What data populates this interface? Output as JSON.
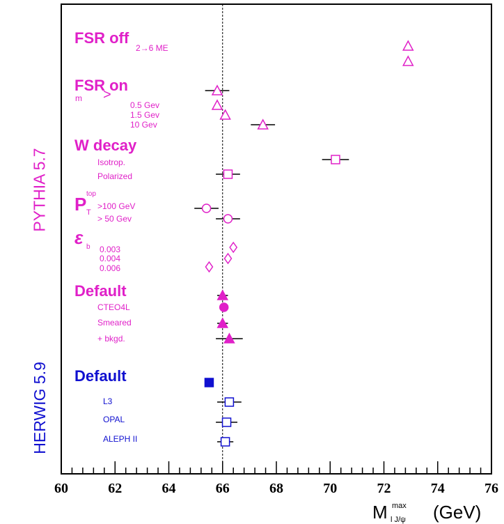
{
  "chart_data": {
    "type": "scatter",
    "xlabel": "M_{J/ψ}^{max}  (GeV)",
    "x_axis_label_main": "M",
    "x_axis_label_sup": "max",
    "x_axis_label_sub": "l J/ψ",
    "x_axis_unit": "(GeV)",
    "xlim": [
      60,
      76
    ],
    "xticks": [
      60,
      62,
      64,
      66,
      68,
      70,
      72,
      74,
      76
    ],
    "reference_x": 66.0,
    "reference_style": "dashed",
    "colors": {
      "pythia": "#e020c8",
      "herwig": "#1010d0",
      "axis": "#000000"
    },
    "generators": [
      {
        "name": "PYTHIA 5.7",
        "color": "#e020c8"
      },
      {
        "name": "HERWIG 5.9",
        "color": "#1010d0"
      }
    ],
    "groups": [
      {
        "title": "FSR off",
        "color": "#e020c8",
        "sublabels": [
          "2→6 ME"
        ]
      },
      {
        "title": "FSR on",
        "color": "#e020c8",
        "sublabels": [
          "m",
          "0.5 Gev",
          "1.5 Gev",
          "10 Gev"
        ]
      },
      {
        "title": "W decay",
        "color": "#e020c8",
        "sublabels": [
          "Isotrop.",
          "Polarized"
        ]
      },
      {
        "title": "P",
        "color": "#e020c8",
        "sublabels": [
          ">100 GeV",
          "> 50 Gev"
        ]
      },
      {
        "title": "ε",
        "color": "#e020c8",
        "sublabels": [
          "0.003",
          "0.004",
          "0.006"
        ]
      },
      {
        "title": "Default",
        "color": "#e020c8",
        "sublabels": [
          "CTEO4L",
          "Smeared",
          "+ bkgd."
        ]
      },
      {
        "title": "Default",
        "color": "#1010d0",
        "sublabels": [
          "L3",
          "OPAL",
          "ALEPH II"
        ]
      }
    ],
    "points": [
      {
        "group": "FSR off",
        "label": "",
        "x": 72.9,
        "err": 0,
        "marker": "triangle-open",
        "color": "#e020c8"
      },
      {
        "group": "FSR off",
        "label": "2→6 ME",
        "x": 72.9,
        "err": 0,
        "marker": "triangle-open",
        "color": "#e020c8"
      },
      {
        "group": "FSR on",
        "label": "",
        "x": 65.8,
        "err": 0.45,
        "marker": "triangle-open",
        "color": "#e020c8"
      },
      {
        "group": "FSR on",
        "label": "0.5 Gev",
        "x": 65.8,
        "err": 0,
        "marker": "triangle-open",
        "color": "#e020c8"
      },
      {
        "group": "FSR on",
        "label": "1.5 Gev",
        "x": 66.1,
        "err": 0,
        "marker": "triangle-open",
        "color": "#e020c8"
      },
      {
        "group": "FSR on",
        "label": "10 Gev",
        "x": 67.5,
        "err": 0.45,
        "marker": "triangle-open",
        "color": "#e020c8"
      },
      {
        "group": "W decay",
        "label": "Isotrop.",
        "x": 70.2,
        "err": 0.5,
        "marker": "square-open",
        "color": "#e020c8"
      },
      {
        "group": "W decay",
        "label": "Polarized",
        "x": 66.2,
        "err": 0.45,
        "marker": "square-open",
        "color": "#e020c8"
      },
      {
        "group": "P",
        "label": ">100 GeV",
        "x": 65.4,
        "err": 0.45,
        "marker": "circle-open",
        "color": "#e020c8"
      },
      {
        "group": "P",
        "label": "> 50 Gev",
        "x": 66.2,
        "err": 0.45,
        "marker": "circle-open",
        "color": "#e020c8"
      },
      {
        "group": "ε",
        "label": "0.003",
        "x": 66.4,
        "err": 0,
        "marker": "diamond-open",
        "color": "#e020c8"
      },
      {
        "group": "ε",
        "label": "0.004",
        "x": 66.2,
        "err": 0,
        "marker": "diamond-open",
        "color": "#e020c8"
      },
      {
        "group": "ε",
        "label": "0.006",
        "x": 65.5,
        "err": 0,
        "marker": "diamond-open",
        "color": "#e020c8"
      },
      {
        "group": "Default",
        "label": "",
        "x": 66.0,
        "err": 0.2,
        "marker": "triangle-filled",
        "color": "#e020c8"
      },
      {
        "group": "Default",
        "label": "CTEO4L",
        "x": 66.05,
        "err": 0,
        "marker": "circle-filled",
        "color": "#e020c8"
      },
      {
        "group": "Default",
        "label": "Smeared",
        "x": 66.0,
        "err": 0.2,
        "marker": "triangle-filled",
        "color": "#e020c8"
      },
      {
        "group": "Default",
        "label": "+ bkgd.",
        "x": 66.25,
        "err": 0.5,
        "marker": "triangle-filled",
        "color": "#e020c8"
      },
      {
        "group": "Default",
        "label": "",
        "x": 65.5,
        "err": 0.15,
        "marker": "square-filled",
        "color": "#1010d0"
      },
      {
        "group": "Default",
        "label": "L3",
        "x": 66.25,
        "err": 0.45,
        "marker": "square-open",
        "color": "#1010d0"
      },
      {
        "group": "Default",
        "label": "OPAL",
        "x": 66.15,
        "err": 0.4,
        "marker": "square-open",
        "color": "#1010d0"
      },
      {
        "group": "Default",
        "label": "ALEPH II",
        "x": 66.1,
        "err": 0.3,
        "marker": "square-open",
        "color": "#1010d0"
      }
    ]
  }
}
